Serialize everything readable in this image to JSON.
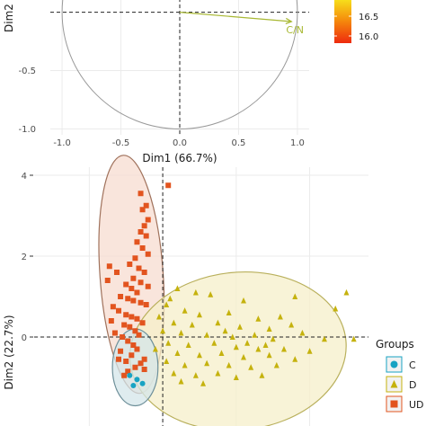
{
  "chart_data": [
    {
      "type": "line",
      "title": "",
      "xlabel": "Dim1 (66.7%)",
      "ylabel": "Dim2",
      "xlim": [
        -1.1,
        1.1
      ],
      "ylim": [
        -1.05,
        0.12
      ],
      "xticks": [
        "-1.0",
        "-0.5",
        "0.0",
        "0.5",
        "1.0"
      ],
      "yticks": [
        "-0.5",
        "-1.0"
      ],
      "grid": true,
      "vectors": [
        {
          "label": "C/N",
          "x": 0.95,
          "y": -0.08,
          "color": "#a8b832"
        }
      ],
      "colorbar": {
        "placement": "top-right",
        "ticks": [
          "16.5",
          "16.0"
        ],
        "colors": [
          "#f7e51c",
          "#f58a0c",
          "#ee2a0e"
        ]
      }
    },
    {
      "type": "scatter",
      "title": "",
      "xlabel": "",
      "ylabel": "Dim2 (22.7%)",
      "xlim": [
        -3.5,
        5.6
      ],
      "ylim": [
        -2.2,
        4.2
      ],
      "yticks": [
        "4",
        "2",
        "0"
      ],
      "grid": true,
      "legend": {
        "title": "Groups",
        "placement": "right",
        "entries": [
          {
            "label": "C",
            "color": "#18a3c3",
            "shape": "circle"
          },
          {
            "label": "D",
            "color": "#c5b20e",
            "shape": "triangle"
          },
          {
            "label": "UD",
            "color": "#e2541f",
            "shape": "square"
          }
        ]
      },
      "ellipses": [
        {
          "group": "UD",
          "cx": -0.85,
          "cy": 1.55,
          "rx": 0.86,
          "ry": 2.95,
          "angle": -4,
          "fill": "#f7dcd0",
          "stroke": "#a0725c"
        },
        {
          "group": "D",
          "cx": 2.05,
          "cy": -0.35,
          "rx": 2.95,
          "ry": 1.95,
          "angle": -6,
          "fill": "#f6efc9",
          "stroke": "#b9b05c"
        },
        {
          "group": "C",
          "cx": -0.75,
          "cy": -0.75,
          "rx": 0.62,
          "ry": 0.95,
          "angle": 0,
          "fill": "#d4e6ea",
          "stroke": "#6d8f99"
        }
      ],
      "series": [
        {
          "name": "UD",
          "color": "#e2541f",
          "shape": "square",
          "points": [
            {
              "x": -0.6,
              "y": 3.55
            },
            {
              "x": -0.45,
              "y": 3.25
            },
            {
              "x": -0.55,
              "y": 3.15
            },
            {
              "x": -0.4,
              "y": 2.9
            },
            {
              "x": -0.5,
              "y": 2.75
            },
            {
              "x": -0.6,
              "y": 2.6
            },
            {
              "x": -0.45,
              "y": 2.5
            },
            {
              "x": -0.7,
              "y": 2.35
            },
            {
              "x": -0.55,
              "y": 2.2
            },
            {
              "x": -0.4,
              "y": 2.05
            },
            {
              "x": -0.75,
              "y": 1.95
            },
            {
              "x": -0.9,
              "y": 1.8
            },
            {
              "x": -0.65,
              "y": 1.7
            },
            {
              "x": -0.5,
              "y": 1.6
            },
            {
              "x": -1.45,
              "y": 1.75
            },
            {
              "x": -1.25,
              "y": 1.6
            },
            {
              "x": -1.5,
              "y": 1.4
            },
            {
              "x": -0.8,
              "y": 1.45
            },
            {
              "x": -0.6,
              "y": 1.35
            },
            {
              "x": -0.4,
              "y": 1.25
            },
            {
              "x": -1.0,
              "y": 1.3
            },
            {
              "x": -0.85,
              "y": 1.2
            },
            {
              "x": -0.7,
              "y": 1.1
            },
            {
              "x": -1.15,
              "y": 1.0
            },
            {
              "x": -0.95,
              "y": 0.95
            },
            {
              "x": -0.8,
              "y": 0.9
            },
            {
              "x": -0.6,
              "y": 0.85
            },
            {
              "x": -0.45,
              "y": 0.8
            },
            {
              "x": -1.35,
              "y": 0.75
            },
            {
              "x": -1.2,
              "y": 0.65
            },
            {
              "x": -1.0,
              "y": 0.55
            },
            {
              "x": -0.85,
              "y": 0.5
            },
            {
              "x": -0.7,
              "y": 0.45
            },
            {
              "x": -1.4,
              "y": 0.4
            },
            {
              "x": -0.55,
              "y": 0.35
            },
            {
              "x": -1.05,
              "y": 0.3
            },
            {
              "x": -0.9,
              "y": 0.25
            },
            {
              "x": -0.75,
              "y": 0.15
            },
            {
              "x": -0.65,
              "y": 0.05
            },
            {
              "x": -1.1,
              "y": 0.0
            },
            {
              "x": -0.95,
              "y": -0.1
            },
            {
              "x": -0.8,
              "y": -0.2
            },
            {
              "x": -0.7,
              "y": -0.3
            },
            {
              "x": -1.15,
              "y": -0.35
            },
            {
              "x": -0.85,
              "y": -0.45
            },
            {
              "x": -1.2,
              "y": -0.55
            },
            {
              "x": -1.0,
              "y": -0.6
            },
            {
              "x": -0.6,
              "y": -0.65
            },
            {
              "x": -0.75,
              "y": -0.75
            },
            {
              "x": -0.5,
              "y": -0.8
            },
            {
              "x": -0.95,
              "y": -0.85
            },
            {
              "x": -1.05,
              "y": -0.95
            },
            {
              "x": 0.15,
              "y": 3.75
            },
            {
              "x": -0.5,
              "y": -0.55
            },
            {
              "x": -1.3,
              "y": 0.1
            }
          ]
        },
        {
          "name": "D",
          "color": "#c5b20e",
          "shape": "triangle",
          "points": [
            {
              "x": 0.4,
              "y": 1.2
            },
            {
              "x": 0.9,
              "y": 1.1
            },
            {
              "x": 0.2,
              "y": 0.95
            },
            {
              "x": 1.3,
              "y": 1.05
            },
            {
              "x": 2.2,
              "y": 0.9
            },
            {
              "x": 3.6,
              "y": 1.0
            },
            {
              "x": 5.0,
              "y": 1.1
            },
            {
              "x": 0.1,
              "y": 0.8
            },
            {
              "x": 0.6,
              "y": 0.65
            },
            {
              "x": 1.0,
              "y": 0.55
            },
            {
              "x": 1.8,
              "y": 0.6
            },
            {
              "x": 2.6,
              "y": 0.45
            },
            {
              "x": 3.2,
              "y": 0.5
            },
            {
              "x": 4.7,
              "y": 0.7
            },
            {
              "x": 0.3,
              "y": 0.35
            },
            {
              "x": 0.8,
              "y": 0.3
            },
            {
              "x": 1.5,
              "y": 0.35
            },
            {
              "x": 2.1,
              "y": 0.25
            },
            {
              "x": 2.9,
              "y": 0.2
            },
            {
              "x": 3.5,
              "y": 0.3
            },
            {
              "x": 0.0,
              "y": 0.15
            },
            {
              "x": 0.5,
              "y": 0.1
            },
            {
              "x": 1.2,
              "y": 0.05
            },
            {
              "x": 1.9,
              "y": 0.0
            },
            {
              "x": 2.5,
              "y": 0.05
            },
            {
              "x": 3.0,
              "y": -0.05
            },
            {
              "x": 3.8,
              "y": 0.1
            },
            {
              "x": 4.4,
              "y": -0.05
            },
            {
              "x": 5.2,
              "y": -0.05
            },
            {
              "x": 0.15,
              "y": -0.15
            },
            {
              "x": 0.7,
              "y": -0.2
            },
            {
              "x": 1.4,
              "y": -0.15
            },
            {
              "x": 2.0,
              "y": -0.25
            },
            {
              "x": 2.3,
              "y": -0.15
            },
            {
              "x": 2.6,
              "y": -0.3
            },
            {
              "x": 2.8,
              "y": -0.2
            },
            {
              "x": 3.3,
              "y": -0.3
            },
            {
              "x": 4.0,
              "y": -0.35
            },
            {
              "x": 0.4,
              "y": -0.4
            },
            {
              "x": 1.0,
              "y": -0.45
            },
            {
              "x": 1.6,
              "y": -0.4
            },
            {
              "x": 2.2,
              "y": -0.5
            },
            {
              "x": 2.9,
              "y": -0.45
            },
            {
              "x": 3.6,
              "y": -0.55
            },
            {
              "x": 0.1,
              "y": -0.6
            },
            {
              "x": 0.6,
              "y": -0.7
            },
            {
              "x": 1.2,
              "y": -0.65
            },
            {
              "x": 1.8,
              "y": -0.7
            },
            {
              "x": 2.4,
              "y": -0.75
            },
            {
              "x": 3.1,
              "y": -0.7
            },
            {
              "x": 0.3,
              "y": -0.9
            },
            {
              "x": 0.9,
              "y": -0.95
            },
            {
              "x": 1.5,
              "y": -0.9
            },
            {
              "x": 2.0,
              "y": -1.0
            },
            {
              "x": 2.7,
              "y": -0.95
            },
            {
              "x": 0.5,
              "y": -1.1
            },
            {
              "x": 1.1,
              "y": -1.15
            },
            {
              "x": -0.2,
              "y": -0.3
            },
            {
              "x": -0.1,
              "y": 0.5
            },
            {
              "x": 1.7,
              "y": 0.15
            }
          ]
        },
        {
          "name": "C",
          "color": "#18a3c3",
          "shape": "circle",
          "points": [
            {
              "x": -0.9,
              "y": -0.95
            },
            {
              "x": -0.7,
              "y": -1.05
            },
            {
              "x": -0.55,
              "y": -1.15
            },
            {
              "x": -0.8,
              "y": -1.2
            }
          ]
        }
      ]
    }
  ]
}
